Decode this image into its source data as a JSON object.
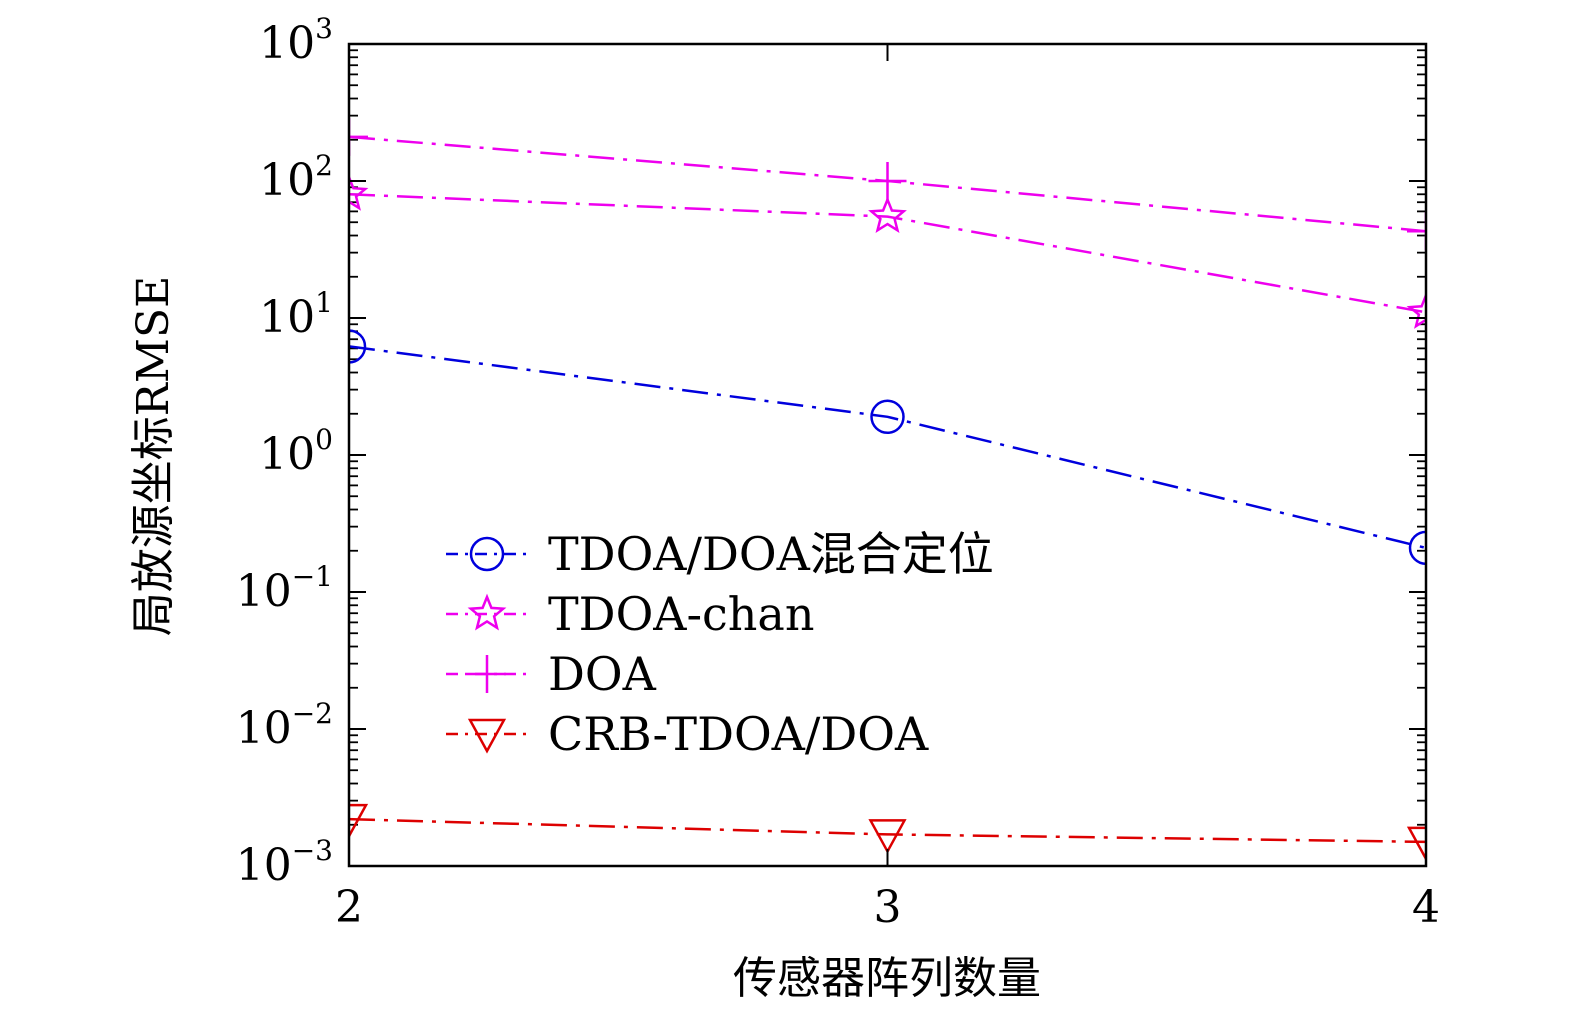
{
  "chart_data": {
    "type": "line",
    "title": "",
    "xlabel": "传感器阵列数量",
    "ylabel": "局放源坐标RMSE",
    "yscale": "log",
    "xlim": [
      2,
      4
    ],
    "ylim": [
      0.001,
      1000
    ],
    "grid": false,
    "legend_position": "lower-left",
    "x": [
      2,
      3,
      4
    ],
    "x_ticks": [
      {
        "value": 2,
        "label": "2"
      },
      {
        "value": 3,
        "label": "3"
      },
      {
        "value": 4,
        "label": "4"
      }
    ],
    "y_ticks": [
      {
        "value": 1000,
        "base": "10",
        "exp": "3"
      },
      {
        "value": 100,
        "base": "10",
        "exp": "2"
      },
      {
        "value": 10,
        "base": "10",
        "exp": "1"
      },
      {
        "value": 1,
        "base": "10",
        "exp": "0"
      },
      {
        "value": 0.1,
        "base": "10",
        "exp": "−1"
      },
      {
        "value": 0.01,
        "base": "10",
        "exp": "−2"
      },
      {
        "value": 0.001,
        "base": "10",
        "exp": "−3"
      }
    ],
    "series": [
      {
        "name": "TDOA/DOA混合定位",
        "values": [
          6.2,
          1.9,
          0.21
        ],
        "color": "#0000dd",
        "marker": "circle"
      },
      {
        "name": "TDOA-chan",
        "values": [
          80,
          55,
          11
        ],
        "color": "#ee00ee",
        "marker": "star"
      },
      {
        "name": "DOA",
        "values": [
          210,
          100,
          43
        ],
        "color": "#ee00ee",
        "marker": "plus"
      },
      {
        "name": "CRB-TDOA/DOA",
        "values": [
          0.0022,
          0.0017,
          0.0015
        ],
        "color": "#dd0000",
        "marker": "triangle-down"
      }
    ]
  }
}
